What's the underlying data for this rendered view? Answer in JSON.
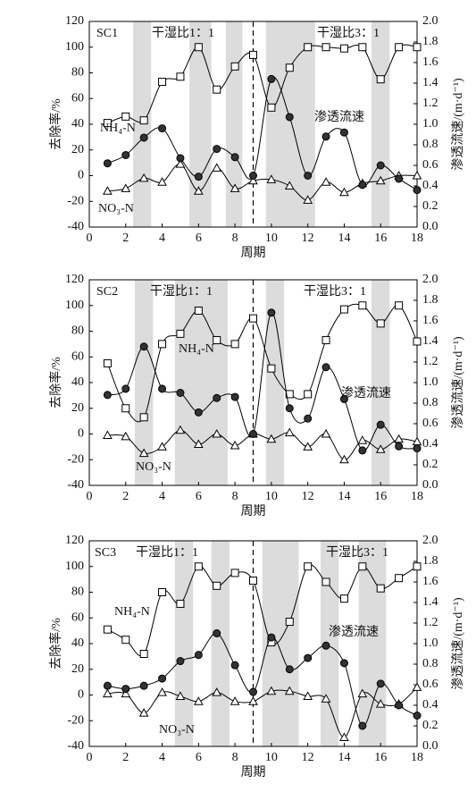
{
  "chart_data": [
    {
      "type": "line",
      "title": "SC1",
      "xlabel": "周期",
      "ylabel": "去除率/%",
      "y2label": "渗透流速/(m·d⁻¹)",
      "annotations": [
        "干湿比1：1",
        "干湿比3：1"
      ],
      "x": [
        1,
        2,
        3,
        4,
        5,
        6,
        7,
        8,
        9,
        10,
        11,
        12,
        13,
        14,
        15,
        16,
        17,
        18
      ],
      "xlim": [
        0,
        18
      ],
      "xticks": [
        0,
        2,
        4,
        6,
        8,
        10,
        12,
        14,
        16,
        18
      ],
      "ylim": [
        -40,
        120
      ],
      "yticks": [
        -40,
        -20,
        0,
        20,
        40,
        60,
        80,
        100,
        120
      ],
      "y2lim": [
        0,
        2
      ],
      "y2ticks": [
        {
          "value": 0,
          "label": "0.0"
        },
        {
          "value": 0.2,
          "label": "0.2"
        },
        {
          "value": 0.4,
          "label": "0.4"
        },
        {
          "value": 0.6,
          "label": "0.6"
        },
        {
          "value": 0.8,
          "label": "0.8"
        },
        {
          "value": 1,
          "label": "1.0"
        },
        {
          "value": 1.2,
          "label": "1.2"
        },
        {
          "value": 1.4,
          "label": "1.4"
        },
        {
          "value": 1.6,
          "label": "1.6"
        },
        {
          "value": 1.8,
          "label": "1.8"
        },
        {
          "value": 2,
          "label": "2.0"
        }
      ],
      "vline": 9,
      "span_color": "#dcdcdc",
      "shaded_spans": [
        [
          2.4,
          3.4
        ],
        [
          5.5,
          6.7
        ],
        [
          7.5,
          8.4
        ],
        [
          9.7,
          12.4
        ],
        [
          15.5,
          16.5
        ]
      ],
      "series": [
        {
          "name": "NH₄-N",
          "color": "#000000",
          "marker": "square",
          "values": [
            41,
            46,
            43,
            73,
            77,
            100,
            67,
            85,
            94,
            53,
            84,
            100,
            100,
            99,
            100,
            75,
            100,
            100
          ]
        },
        {
          "name": "NO₃-N",
          "color": "#000000",
          "marker": "triangle",
          "values": [
            -12,
            -10,
            -2,
            -5,
            9,
            -12,
            6,
            -10,
            -4,
            -3,
            -8,
            -19,
            -5,
            -13,
            -6,
            -4,
            0,
            0
          ]
        },
        {
          "name": "渗透流速",
          "color": "#000000",
          "marker": "circle",
          "axis": "y2",
          "values": [
            0.62,
            0.7,
            0.87,
            0.96,
            0.67,
            0.49,
            0.76,
            0.68,
            0.5,
            1.44,
            1.07,
            0.5,
            0.88,
            0.92,
            0.41,
            0.6,
            0.47,
            0.36
          ]
        }
      ]
    },
    {
      "type": "line",
      "title": "SC2",
      "xlabel": "周期",
      "ylabel": "去除率/%",
      "y2label": "渗透流速/(m·d⁻¹)",
      "annotations": [
        "干湿比1：1",
        "干湿比3：1"
      ],
      "x": [
        1,
        2,
        3,
        4,
        5,
        6,
        7,
        8,
        9,
        10,
        11,
        12,
        13,
        14,
        15,
        16,
        17,
        18
      ],
      "xlim": [
        0,
        18
      ],
      "xticks": [
        0,
        2,
        4,
        6,
        8,
        10,
        12,
        14,
        16,
        18
      ],
      "ylim": [
        -40,
        120
      ],
      "yticks": [
        -40,
        -20,
        0,
        20,
        40,
        60,
        80,
        100,
        120
      ],
      "y2lim": [
        0,
        2
      ],
      "y2ticks": [
        {
          "value": 0,
          "label": "0.0"
        },
        {
          "value": 0.2,
          "label": "0.2"
        },
        {
          "value": 0.4,
          "label": "0.4"
        },
        {
          "value": 0.6,
          "label": "0.6"
        },
        {
          "value": 0.8,
          "label": "0.8"
        },
        {
          "value": 1,
          "label": "1.0"
        },
        {
          "value": 1.2,
          "label": "1.2"
        },
        {
          "value": 1.4,
          "label": "1.4"
        },
        {
          "value": 1.6,
          "label": "1.6"
        },
        {
          "value": 1.8,
          "label": "1.8"
        },
        {
          "value": 2,
          "label": "2.0"
        }
      ],
      "vline": 9,
      "span_color": "#dcdcdc",
      "shaded_spans": [
        [
          2.5,
          3.5
        ],
        [
          4.7,
          7.6
        ],
        [
          9.7,
          10.7
        ],
        [
          15.5,
          16.5
        ]
      ],
      "series": [
        {
          "name": "NH₄-N",
          "color": "#000000",
          "marker": "square",
          "values": [
            55,
            20,
            13,
            70,
            78,
            96,
            73,
            70,
            90,
            51,
            31,
            31,
            73,
            97,
            100,
            86,
            100,
            72
          ]
        },
        {
          "name": "NO₃-N",
          "color": "#000000",
          "marker": "triangle",
          "values": [
            -1,
            -2,
            -15,
            -10,
            3,
            -8,
            0,
            -9,
            0,
            -4,
            1,
            -10,
            0,
            -20,
            -5,
            -12,
            -4,
            -6
          ]
        },
        {
          "name": "渗透流速",
          "color": "#000000",
          "marker": "circle",
          "axis": "y2",
          "values": [
            0.88,
            0.94,
            1.35,
            0.94,
            0.9,
            0.71,
            0.85,
            0.86,
            0.5,
            1.68,
            0.75,
            0.65,
            1.15,
            0.84,
            0.34,
            0.59,
            0.38,
            0.36
          ]
        }
      ]
    },
    {
      "type": "line",
      "title": "SC3",
      "xlabel": "周期",
      "ylabel": "去除率/%",
      "y2label": "渗透流速/(m·d⁻¹)",
      "annotations": [
        "干湿比1：1",
        "干湿比3：1"
      ],
      "x": [
        1,
        2,
        3,
        4,
        5,
        6,
        7,
        8,
        9,
        10,
        11,
        12,
        13,
        14,
        15,
        16,
        17,
        18
      ],
      "xlim": [
        0,
        18
      ],
      "xticks": [
        0,
        2,
        4,
        6,
        8,
        10,
        12,
        14,
        16,
        18
      ],
      "ylim": [
        -40,
        120
      ],
      "yticks": [
        -40,
        -20,
        0,
        20,
        40,
        60,
        80,
        100,
        120
      ],
      "y2lim": [
        0,
        2
      ],
      "y2ticks": [
        {
          "value": 0,
          "label": "0.0"
        },
        {
          "value": 0.2,
          "label": "0.2"
        },
        {
          "value": 0.4,
          "label": "0.4"
        },
        {
          "value": 0.6,
          "label": "0.6"
        },
        {
          "value": 0.8,
          "label": "0.8"
        },
        {
          "value": 1,
          "label": "1.0"
        },
        {
          "value": 1.2,
          "label": "1.2"
        },
        {
          "value": 1.4,
          "label": "1.4"
        },
        {
          "value": 1.6,
          "label": "1.6"
        },
        {
          "value": 1.8,
          "label": "1.8"
        },
        {
          "value": 2,
          "label": "2.0"
        }
      ],
      "vline": 9,
      "span_color": "#dcdcdc",
      "shaded_spans": [
        [
          4.7,
          5.7
        ],
        [
          6.7,
          7.7
        ],
        [
          9.5,
          11.5
        ],
        [
          12.7,
          13.7
        ],
        [
          14.8,
          16.3
        ]
      ],
      "series": [
        {
          "name": "NH₄-N",
          "color": "#000000",
          "marker": "square",
          "values": [
            51,
            43,
            32,
            80,
            71,
            100,
            85,
            95,
            89,
            41,
            57,
            100,
            88,
            75,
            100,
            83,
            91,
            100
          ]
        },
        {
          "name": "NO₃-N",
          "color": "#000000",
          "marker": "triangle",
          "values": [
            1,
            1,
            -14,
            2,
            -1,
            -5,
            2,
            -5,
            -5,
            3,
            3,
            -1,
            -3,
            -33,
            1,
            -7,
            -7,
            6
          ]
        },
        {
          "name": "渗透流速",
          "color": "#000000",
          "marker": "circle",
          "axis": "y2",
          "values": [
            0.59,
            0.56,
            0.59,
            0.66,
            0.83,
            0.89,
            1.1,
            0.79,
            0.53,
            1.06,
            0.75,
            0.86,
            0.98,
            0.81,
            0.2,
            0.61,
            0.4,
            0.3
          ]
        }
      ]
    }
  ]
}
